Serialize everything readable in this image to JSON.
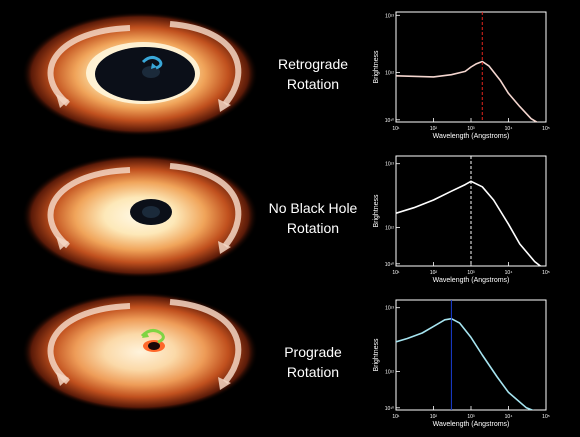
{
  "panels": [
    {
      "id": "retrograde",
      "label_line1": "Retrograde",
      "label_line2": "Rotation",
      "curve_color": "#f4d6cf",
      "marker_color": "#e0231c",
      "marker_x": 2000,
      "arrow_color": "#39a7d8",
      "spin": "retrograde",
      "inner_hole": "large"
    },
    {
      "id": "no-black-hole",
      "label_line1": "No Black Hole",
      "label_line2": "Rotation",
      "curve_color": "#ffffff",
      "marker_color": "#ffffff",
      "marker_x": 1000,
      "spin": "none",
      "inner_hole": "medium"
    },
    {
      "id": "prograde",
      "label_line1": "Prograde",
      "label_line2": "Rotation",
      "curve_color": "#a6e4f0",
      "marker_color": "#1a3fd6",
      "marker_x": 300,
      "arrow_color": "#7fd443",
      "spin": "prograde",
      "inner_hole": "small"
    }
  ],
  "chart_data": [
    {
      "type": "line",
      "xlabel": "Wavelength (Angstroms)",
      "ylabel": "Brightness",
      "x_scale": "log",
      "xlim": [
        10,
        100000
      ],
      "x_ticks": [
        "10¹",
        "10²",
        "10³",
        "10⁴",
        "10⁵"
      ],
      "y_ticks": [
        "10¹⁰",
        "10¹²",
        "10¹³"
      ],
      "series": [
        {
          "x": [
            10,
            100,
            300,
            700,
            1000,
            1400,
            2000,
            3000,
            6000,
            10000,
            20000,
            40000,
            100000
          ],
          "y": [
            0.42,
            0.41,
            0.43,
            0.46,
            0.5,
            0.53,
            0.55,
            0.51,
            0.38,
            0.26,
            0.14,
            0.03,
            -0.05
          ]
        }
      ],
      "marker_x": 2000
    },
    {
      "type": "line",
      "xlabel": "Wavelength (Angstroms)",
      "ylabel": "Brightness",
      "x_scale": "log",
      "xlim": [
        10,
        100000
      ],
      "x_ticks": [
        "10¹",
        "10²",
        "10³",
        "10⁴",
        "10⁵"
      ],
      "y_ticks": [
        "10¹³",
        "10¹²",
        "10¹⁰"
      ],
      "series": [
        {
          "x": [
            10,
            30,
            100,
            300,
            700,
            1000,
            2000,
            4000,
            10000,
            20000,
            50000,
            100000
          ],
          "y": [
            0.48,
            0.53,
            0.6,
            0.68,
            0.74,
            0.77,
            0.72,
            0.6,
            0.38,
            0.2,
            0.04,
            -0.04
          ]
        }
      ],
      "marker_x": 1000
    },
    {
      "type": "line",
      "xlabel": "Wavelength (Angstroms)",
      "ylabel": "Brightness",
      "x_scale": "log",
      "xlim": [
        10,
        100000
      ],
      "x_ticks": [
        "10¹",
        "10²",
        "10³",
        "10⁴",
        "10⁵"
      ],
      "y_ticks": [
        "10¹³",
        "10¹²",
        "10¹⁰"
      ],
      "series": [
        {
          "x": [
            10,
            20,
            50,
            100,
            200,
            300,
            500,
            1000,
            2000,
            5000,
            10000,
            30000,
            100000
          ],
          "y": [
            0.62,
            0.65,
            0.7,
            0.76,
            0.82,
            0.83,
            0.79,
            0.66,
            0.5,
            0.3,
            0.16,
            0.02,
            -0.05
          ]
        }
      ],
      "marker_x": 300
    }
  ]
}
